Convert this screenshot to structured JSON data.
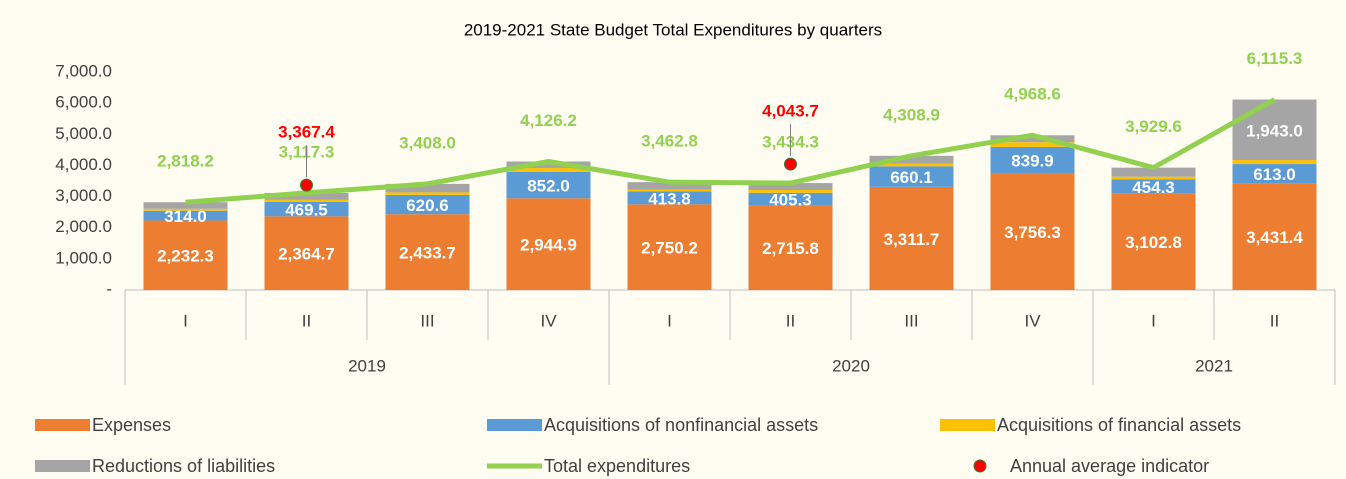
{
  "chart_data": {
    "type": "stacked_bar_line",
    "title": "2019-2021 State Budget Total Expenditures by quarters",
    "category_groups": [
      {
        "name": "2019",
        "categories": [
          "I",
          "II",
          "III",
          "IV"
        ]
      },
      {
        "name": "2020",
        "categories": [
          "I",
          "II",
          "III",
          "IV"
        ]
      },
      {
        "name": "2021",
        "categories": [
          "I",
          "II"
        ]
      }
    ],
    "ylim": [
      0,
      7000
    ],
    "yticks": [
      {
        "value": 0,
        "label": "-"
      },
      {
        "value": 1000,
        "label": "1,000.0"
      },
      {
        "value": 2000,
        "label": "2,000.0"
      },
      {
        "value": 3000,
        "label": "3,000.0"
      },
      {
        "value": 4000,
        "label": "4,000.0"
      },
      {
        "value": 5000,
        "label": "5,000.0"
      },
      {
        "value": 6000,
        "label": "6,000.0"
      },
      {
        "value": 7000,
        "label": "7,000.0"
      }
    ],
    "grid": false,
    "series": [
      {
        "name": "Expenses",
        "kind": "bar",
        "color": "#ed7d31",
        "values": [
          2232.3,
          2364.7,
          2433.7,
          2944.9,
          2750.2,
          2715.8,
          3311.7,
          3756.3,
          3102.8,
          3431.4
        ],
        "value_labels": [
          "2,232.3",
          "2,364.7",
          "2,433.7",
          "2,944.9",
          "2,750.2",
          "2,715.8",
          "3,311.7",
          "3,756.3",
          "3,102.8",
          "3,431.4"
        ]
      },
      {
        "name": "Acquisitions of nonfinancial assets",
        "kind": "bar",
        "color": "#5b9bd5",
        "values": [
          314.0,
          469.5,
          620.6,
          852.0,
          413.8,
          405.3,
          660.1,
          839.9,
          454.3,
          613.0
        ],
        "value_labels": [
          "314.0",
          "469.5",
          "620.6",
          "852.0",
          "413.8",
          "405.3",
          "660.1",
          "839.9",
          "454.3",
          "613.0"
        ]
      },
      {
        "name": "Acquisitions of financial assets",
        "kind": "bar",
        "color": "#ffc000",
        "values": [
          60,
          60,
          80,
          120,
          60,
          90,
          90,
          150,
          80,
          128
        ]
      },
      {
        "name": "Reductions of liabilities",
        "kind": "bar",
        "color": "#a5a5a5",
        "values": [
          212,
          223,
          274,
          209,
          239,
          223,
          247,
          222,
          292,
          1943.0
        ],
        "value_labels": [
          null,
          null,
          null,
          null,
          null,
          null,
          null,
          null,
          null,
          "1,943.0"
        ]
      },
      {
        "name": "Total expenditures",
        "kind": "line",
        "color": "#92d050",
        "values": [
          2818.2,
          3117.3,
          3408.0,
          4126.2,
          3462.8,
          3434.3,
          4308.9,
          4968.6,
          3929.6,
          6115.3
        ],
        "value_labels": [
          "2,818.2",
          "3,117.3",
          "3,408.0",
          "4,126.2",
          "3,462.8",
          "3,434.3",
          "4,308.9",
          "4,968.6",
          "3,929.6",
          "6,115.3"
        ]
      },
      {
        "name": "Annual average indicator",
        "kind": "dot",
        "color": "#ff0000",
        "values": [
          null,
          3367.4,
          null,
          null,
          null,
          4043.7,
          null,
          null,
          null,
          null
        ],
        "value_labels": [
          null,
          "3,367.4",
          null,
          null,
          null,
          "4,043.7",
          null,
          null,
          null,
          null
        ]
      }
    ]
  }
}
